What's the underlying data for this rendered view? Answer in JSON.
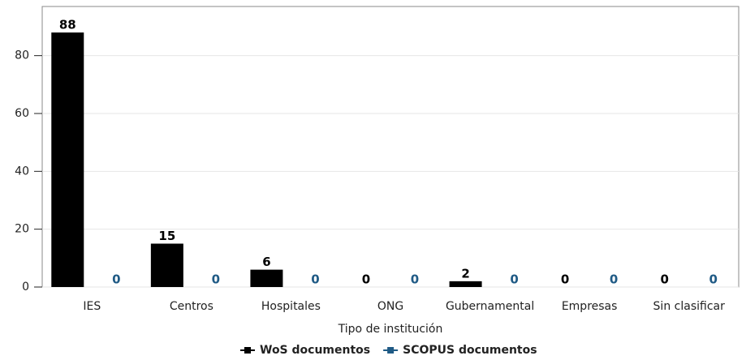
{
  "chart_data": {
    "type": "bar",
    "x_label": "Tipo de institución",
    "categories": [
      "IES",
      "Centros",
      "Hospitales",
      "ONG",
      "Gubernamental",
      "Empresas",
      "Sin clasificar"
    ],
    "series": [
      {
        "name": "WoS documentos",
        "color": "#000000",
        "values": [
          88,
          15,
          6,
          0,
          2,
          0,
          0
        ]
      },
      {
        "name": "SCOPUS documentos",
        "color": "#1f5a85",
        "values": [
          0,
          0,
          0,
          0,
          0,
          0,
          0
        ]
      }
    ],
    "ylim": [
      0,
      97
    ],
    "yticks": [
      0,
      20,
      40,
      60,
      80
    ],
    "grid": true,
    "legend": "bottom"
  }
}
